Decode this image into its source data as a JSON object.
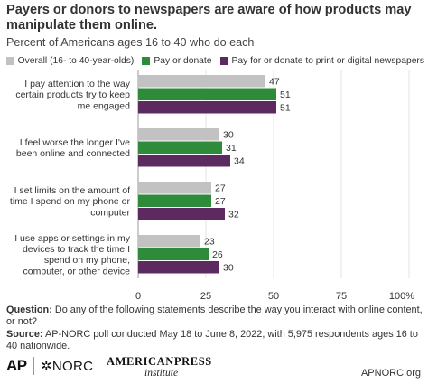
{
  "chart_data": {
    "type": "bar",
    "orientation": "horizontal",
    "title": "Payers or donors to newspapers are aware of how products may manipulate them online.",
    "subtitle": "Percent of Americans ages 16 to 40 who do each",
    "categories": [
      [
        "I pay attention to the way",
        "certain products try to keep",
        "me engaged"
      ],
      [
        "I feel worse the longer I've",
        "been online and connected"
      ],
      [
        "I set limits on the amount of",
        "time I spend on my phone or",
        "computer"
      ],
      [
        "I use apps or settings in my",
        "devices to track the time I",
        "spend on my phone,",
        "computer, or other device"
      ]
    ],
    "series": [
      {
        "name": "Overall (16- to 40-year-olds)",
        "color": "#c2c2c2",
        "values": [
          47,
          30,
          27,
          23
        ]
      },
      {
        "name": "Pay or donate",
        "color": "#2e8b3a",
        "values": [
          51,
          31,
          27,
          26
        ]
      },
      {
        "name": "Pay for or donate to print or digital newspapers",
        "color": "#5c2a5e",
        "values": [
          51,
          34,
          32,
          30
        ]
      }
    ],
    "xlim": [
      0,
      100
    ],
    "xticks": [
      "0",
      "25",
      "50",
      "75",
      "100%"
    ],
    "legend": "top-right"
  },
  "notes": {
    "question_label": "Question:",
    "question_text": "Do any of the following statements describe the way you interact with online content, or not?",
    "source_label": "Source:",
    "source_text": "AP-NORC poll conducted May 18 to June 8, 2022, with 5,975 respondents ages 16 to 40 nationwide."
  },
  "footer": {
    "logo_ap": "AP",
    "logo_norc": "✲NORC",
    "logo_api_top": "AMERICANPRESS",
    "logo_api_bottom": "institute",
    "site": "APNORC.org"
  }
}
